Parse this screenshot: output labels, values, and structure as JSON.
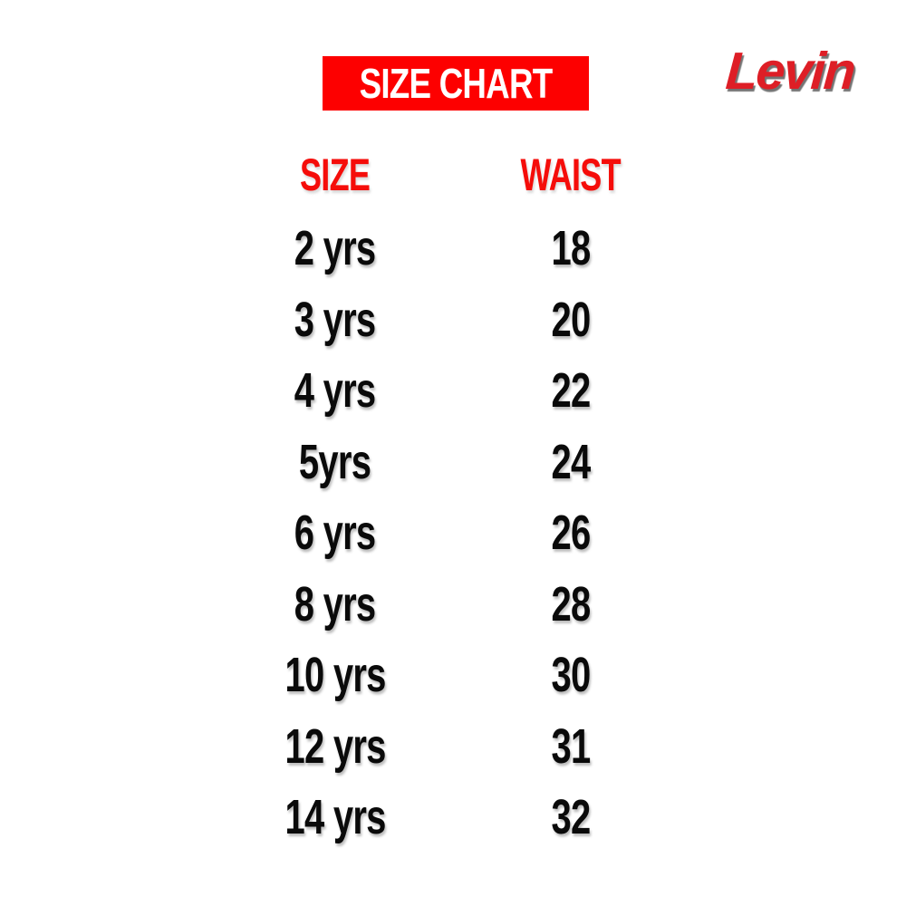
{
  "banner": {
    "label": "SIZE CHART"
  },
  "brand": {
    "name": "Levin"
  },
  "colors": {
    "banner_bg": "#fd0000",
    "banner_text": "#ffffff",
    "header_red": "#f50d0a",
    "logo_red": "#de1e26",
    "text_black": "#0a0a0a"
  },
  "chart_data": {
    "type": "table",
    "title": "SIZE CHART",
    "columns": [
      "SIZE",
      "WAIST"
    ],
    "rows": [
      [
        "2 yrs",
        "18"
      ],
      [
        "3 yrs",
        "20"
      ],
      [
        "4 yrs",
        "22"
      ],
      [
        "5yrs",
        "24"
      ],
      [
        "6 yrs",
        "26"
      ],
      [
        "8 yrs",
        "28"
      ],
      [
        "10 yrs",
        "30"
      ],
      [
        "12 yrs",
        "31"
      ],
      [
        "14 yrs",
        "32"
      ]
    ]
  },
  "table": {
    "headers": {
      "size": "SIZE",
      "waist": "WAIST"
    },
    "rows": [
      {
        "size": "2 yrs",
        "waist": "18"
      },
      {
        "size": "3 yrs",
        "waist": "20"
      },
      {
        "size": "4 yrs",
        "waist": "22"
      },
      {
        "size": "5yrs",
        "waist": "24"
      },
      {
        "size": "6 yrs",
        "waist": "26"
      },
      {
        "size": "8 yrs",
        "waist": "28"
      },
      {
        "size": "10 yrs",
        "waist": "30"
      },
      {
        "size": "12 yrs",
        "waist": "31"
      },
      {
        "size": "14 yrs",
        "waist": "32"
      }
    ]
  }
}
